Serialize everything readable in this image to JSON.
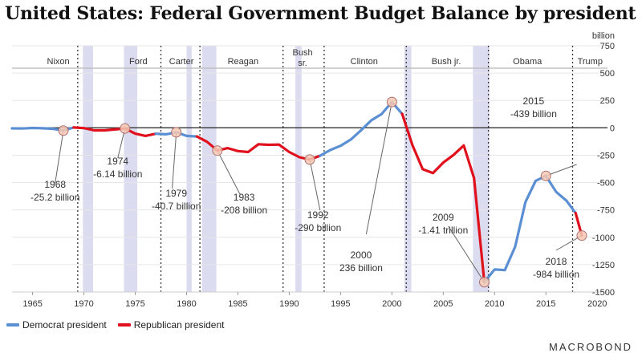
{
  "title": "United States: Federal Government Budget Balance by president",
  "brand": "MACROBOND",
  "colors": {
    "democrat": "#5b8fd3",
    "republican": "#e0101c",
    "shade": "#dcdcf0",
    "zero_line": "#333333",
    "grid": "#e6e6e6"
  },
  "chart_data": {
    "type": "line",
    "title": "United States: Federal Government Budget Balance by president",
    "ylabel": "billion",
    "xlim": [
      1963,
      2021
    ],
    "ylim": [
      -1500,
      750
    ],
    "x_ticks": [
      1965,
      1970,
      1975,
      1980,
      1985,
      1990,
      1995,
      2000,
      2005,
      2010,
      2015,
      2020
    ],
    "y_ticks": [
      750,
      500,
      250,
      0,
      -250,
      -500,
      -750,
      -1000,
      -1250,
      -1500
    ],
    "y_tick_labels": [
      "750",
      "500",
      "250",
      "0",
      "-250",
      "-500",
      "-750",
      "-1000",
      "-1250",
      "-1500"
    ],
    "series": [
      {
        "name": "Democrat president",
        "party": "democrat",
        "points": [
          [
            1963,
            -5
          ],
          [
            1964,
            -6
          ],
          [
            1965,
            -1
          ],
          [
            1966,
            -4
          ],
          [
            1967,
            -9
          ],
          [
            1968,
            -25.2
          ],
          [
            1969,
            3.2
          ]
        ]
      },
      {
        "name": "Republican president",
        "party": "republican",
        "points": [
          [
            1969,
            3.2
          ],
          [
            1970,
            -2.8
          ],
          [
            1971,
            -23
          ],
          [
            1972,
            -23.4
          ],
          [
            1973,
            -14.9
          ],
          [
            1974,
            -6.14
          ],
          [
            1975,
            -53.2
          ],
          [
            1976,
            -73.7
          ],
          [
            1977,
            -53.7
          ]
        ]
      },
      {
        "name": "Democrat president",
        "party": "democrat",
        "points": [
          [
            1977,
            -53.7
          ],
          [
            1978,
            -59.2
          ],
          [
            1979,
            -40.7
          ],
          [
            1980,
            -73.8
          ],
          [
            1981,
            -79
          ]
        ]
      },
      {
        "name": "Republican president",
        "party": "republican",
        "points": [
          [
            1981,
            -79
          ],
          [
            1982,
            -128
          ],
          [
            1983,
            -208
          ],
          [
            1984,
            -185
          ],
          [
            1985,
            -212
          ],
          [
            1986,
            -221
          ],
          [
            1987,
            -150
          ],
          [
            1988,
            -155
          ],
          [
            1989,
            -153
          ],
          [
            1990,
            -221
          ],
          [
            1991,
            -269
          ],
          [
            1992,
            -290
          ],
          [
            1993,
            -255
          ]
        ]
      },
      {
        "name": "Democrat president",
        "party": "democrat",
        "points": [
          [
            1993,
            -255
          ],
          [
            1994,
            -203
          ],
          [
            1995,
            -164
          ],
          [
            1996,
            -107
          ],
          [
            1997,
            -22
          ],
          [
            1998,
            69
          ],
          [
            1999,
            126
          ],
          [
            2000,
            236
          ],
          [
            2001,
            128
          ]
        ]
      },
      {
        "name": "Republican president",
        "party": "republican",
        "points": [
          [
            2001,
            128
          ],
          [
            2002,
            -158
          ],
          [
            2003,
            -378
          ],
          [
            2004,
            -413
          ],
          [
            2005,
            -318
          ],
          [
            2006,
            -248
          ],
          [
            2007,
            -161
          ],
          [
            2008,
            -459
          ],
          [
            2009,
            -1410
          ]
        ]
      },
      {
        "name": "Democrat president",
        "party": "democrat",
        "points": [
          [
            2009,
            -1410
          ],
          [
            2010,
            -1294
          ],
          [
            2011,
            -1300
          ],
          [
            2012,
            -1087
          ],
          [
            2013,
            -680
          ],
          [
            2014,
            -485
          ],
          [
            2015,
            -439
          ],
          [
            2016,
            -585
          ],
          [
            2017,
            -665
          ],
          [
            2017.9,
            -779
          ]
        ]
      },
      {
        "name": "Republican president",
        "party": "republican",
        "points": [
          [
            2017.9,
            -779
          ],
          [
            2018.5,
            -984
          ]
        ]
      }
    ],
    "presidents": [
      {
        "name": "Nixon",
        "start": 1969,
        "end": 1974.6,
        "label_x": 1967.5
      },
      {
        "name": "Ford",
        "start": 1974.6,
        "end": 1977,
        "label_x": 1975.3
      },
      {
        "name": "Carter",
        "start": 1977,
        "end": 1981,
        "label_x": 1979.5
      },
      {
        "name": "Reagan",
        "start": 1981,
        "end": 1989,
        "label_x": 1985.5
      },
      {
        "name": "Bush",
        "name2": "sr.",
        "start": 1989,
        "end": 1993,
        "label_x": 1991.3
      },
      {
        "name": "Clinton",
        "start": 1993,
        "end": 2001,
        "label_x": 1997.3
      },
      {
        "name": "Bush jr.",
        "start": 2001,
        "end": 2009,
        "label_x": 2005.3
      },
      {
        "name": "Obama",
        "start": 2009,
        "end": 2017,
        "label_x": 2013.2
      },
      {
        "name": "Trump",
        "start": 2017,
        "end": 2021,
        "label_x": 2019.3
      }
    ],
    "president_lines": [
      1969.4,
      1977.5,
      1981.3,
      1989.4,
      1993.4,
      2001.4,
      2009.4,
      2017.6
    ],
    "recessions": [
      [
        1969.9,
        1970.9
      ],
      [
        1973.9,
        1975.2
      ],
      [
        1980.0,
        1980.5
      ],
      [
        1981.5,
        1982.9
      ],
      [
        1990.6,
        1991.2
      ],
      [
        2001.2,
        2001.9
      ],
      [
        2007.9,
        2009.5
      ]
    ],
    "annotations": [
      {
        "year": "1968",
        "value": "-25.2 billion",
        "x": 1968,
        "y": -25.2
      },
      {
        "year": "1974",
        "value": "-6.14 billion",
        "x": 1974,
        "y": -6.14
      },
      {
        "year": "1979",
        "value": "-40.7 billion",
        "x": 1979,
        "y": -40.7
      },
      {
        "year": "1983",
        "value": "-208 billion",
        "x": 1983,
        "y": -208
      },
      {
        "year": "1992",
        "value": "-290 billion",
        "x": 1992,
        "y": -290
      },
      {
        "year": "2000",
        "value": "236 billion",
        "x": 2000,
        "y": 236
      },
      {
        "year": "2009",
        "value": "-1.41 trillion",
        "x": 2009,
        "y": -1410
      },
      {
        "year": "2015",
        "value": "-439 billion",
        "x": 2015,
        "y": -439
      },
      {
        "year": "2018",
        "value": "-984 billion",
        "x": 2018.5,
        "y": -984
      }
    ],
    "legend": [
      "Democrat president",
      "Republican president"
    ]
  }
}
